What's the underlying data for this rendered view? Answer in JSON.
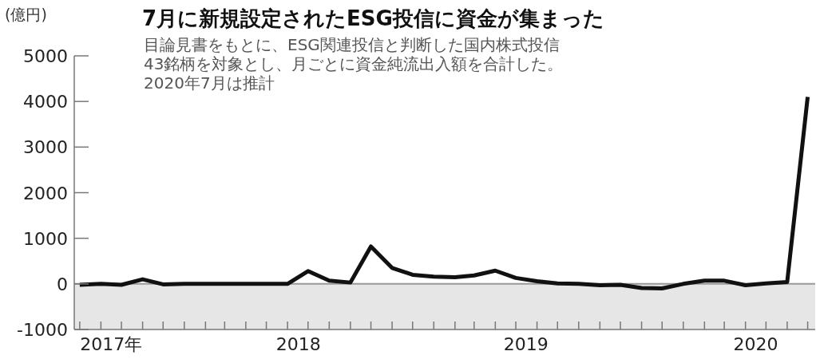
{
  "chart_data": {
    "type": "line",
    "title": "7月に新規設定されたESG投信に資金が集まった",
    "subtitle": "目論見書をもとに、ESG関連投信と判断した国内株式投信\n43銘柄を対象とし、月ごとに資金純流出入額を合計した。\n2020年7月は推計",
    "ylabel": "(億円)",
    "x": [
      "2017-08",
      "2017-09",
      "2017-10",
      "2017-11",
      "2017-12",
      "2018-01",
      "2018-02",
      "2018-03",
      "2018-04",
      "2018-05",
      "2018-06",
      "2018-07",
      "2018-08",
      "2018-09",
      "2018-10",
      "2018-11",
      "2018-12",
      "2019-01",
      "2019-02",
      "2019-03",
      "2019-04",
      "2019-05",
      "2019-06",
      "2019-07",
      "2019-08",
      "2019-09",
      "2019-10",
      "2019-11",
      "2019-12",
      "2020-01",
      "2020-02",
      "2020-03",
      "2020-04",
      "2020-05",
      "2020-06",
      "2020-07"
    ],
    "values": [
      -20,
      0,
      -20,
      100,
      -10,
      0,
      0,
      0,
      0,
      0,
      0,
      280,
      70,
      30,
      820,
      350,
      200,
      160,
      145,
      185,
      290,
      130,
      60,
      10,
      0,
      -30,
      -20,
      -90,
      -100,
      0,
      70,
      70,
      -30,
      10,
      40,
      4100
    ],
    "color": "#111111",
    "xlim": [
      "2017-07-24",
      "2020-07-12"
    ],
    "xticks": [
      {
        "value": "2017-08",
        "label": null
      },
      {
        "value": "2017-09",
        "label": null
      },
      {
        "value": "2017-10",
        "label": null
      },
      {
        "value": "2017-11",
        "label": null
      },
      {
        "value": "2017-12",
        "label": null
      },
      {
        "value": "2018-01",
        "label": null
      },
      {
        "value": "2018-02",
        "label": null
      },
      {
        "value": "2018-03",
        "label": null
      },
      {
        "value": "2018-04",
        "label": null
      },
      {
        "value": "2018-05",
        "label": null
      },
      {
        "value": "2018-06",
        "label": null
      },
      {
        "value": "2018-07",
        "label": null
      },
      {
        "value": "2018-08",
        "label": null
      },
      {
        "value": "2018-09",
        "label": null
      },
      {
        "value": "2018-10",
        "label": null
      },
      {
        "value": "2018-11",
        "label": null
      },
      {
        "value": "2018-12",
        "label": null
      },
      {
        "value": "2019-01",
        "label": null
      },
      {
        "value": "2019-02",
        "label": null
      },
      {
        "value": "2019-03",
        "label": null
      },
      {
        "value": "2019-04",
        "label": null
      },
      {
        "value": "2019-05",
        "label": null
      },
      {
        "value": "2019-06",
        "label": null
      },
      {
        "value": "2019-07",
        "label": null
      },
      {
        "value": "2019-08",
        "label": null
      },
      {
        "value": "2019-09",
        "label": null
      },
      {
        "value": "2019-10",
        "label": null
      },
      {
        "value": "2019-11",
        "label": null
      },
      {
        "value": "2019-12",
        "label": null
      },
      {
        "value": "2020-01",
        "label": null
      },
      {
        "value": "2020-02",
        "label": null
      },
      {
        "value": "2020-03",
        "label": null
      },
      {
        "value": "2020-04",
        "label": null
      },
      {
        "value": "2020-05",
        "label": null
      },
      {
        "value": "2020-06",
        "label": null
      },
      {
        "value": "2020-07",
        "label": null
      },
      {
        "value": "2017-09-16",
        "label": "2017年"
      },
      {
        "value": "2018-06-17",
        "label": "2018"
      },
      {
        "value": "2019-05-16",
        "label": "2019"
      },
      {
        "value": "2020-04-16",
        "label": "2020"
      }
    ],
    "ylim": [
      -1000,
      5000
    ],
    "yticks": [
      -1000,
      0,
      1000,
      2000,
      3000,
      4000,
      5000
    ],
    "bands": [
      {
        "axis": "y",
        "from": -1000,
        "to": 0,
        "color": "#e6e6e6"
      }
    ],
    "ref_lines": [
      {
        "axis": "y",
        "value": 0,
        "color": "#999999"
      }
    ]
  }
}
